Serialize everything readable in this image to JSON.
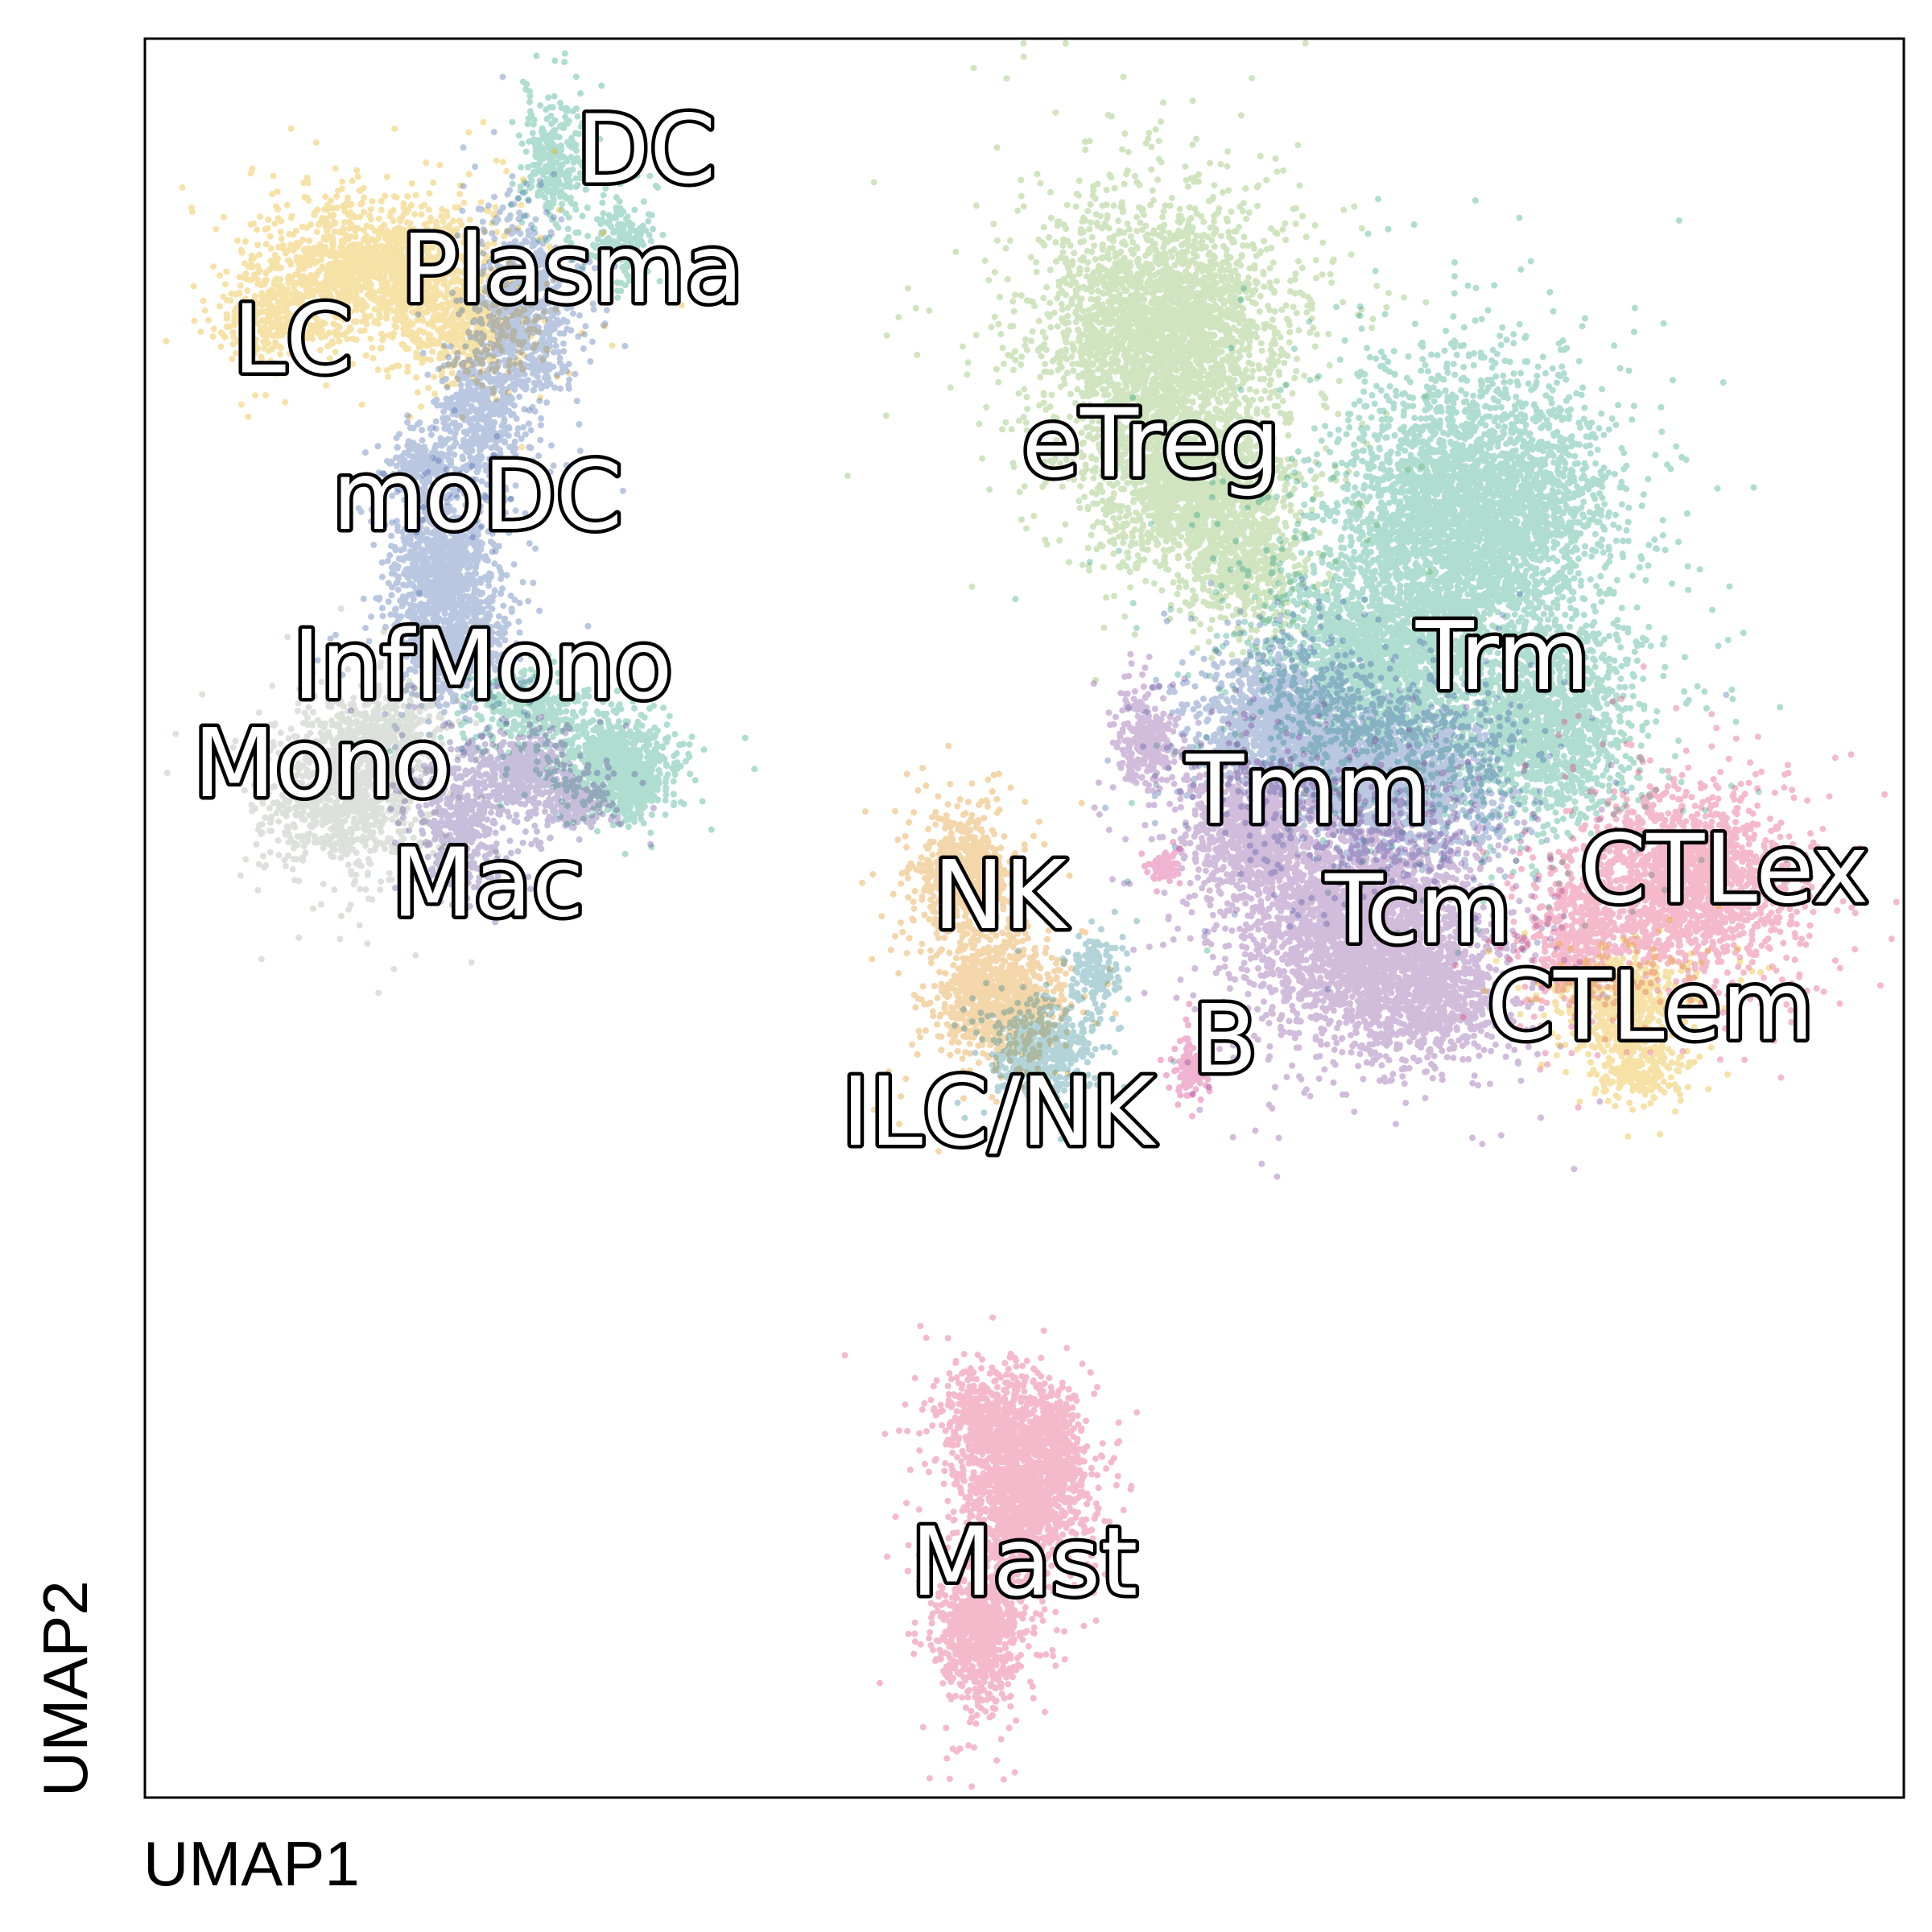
{
  "chart_data": {
    "type": "scatter",
    "title": "",
    "xlabel": "UMAP1",
    "ylabel": "UMAP2",
    "xlim": [
      0,
      100
    ],
    "ylim": [
      0,
      100
    ],
    "grid": false,
    "legend": "none",
    "clusters": [
      {
        "name": "DC",
        "color": "#1b9e77",
        "label_at": [
          28.5,
          93.3
        ],
        "blobs": [
          [
            23.3,
            92.7,
            1.5,
            3.0,
            300
          ],
          [
            27.1,
            88.4,
            1.6,
            2.0,
            200
          ]
        ]
      },
      {
        "name": "Plasma",
        "color": "#e6ab02",
        "label_at": [
          24.3,
          86.5
        ],
        "blobs": [
          [
            13.5,
            87.0,
            6.0,
            3.5,
            1400
          ],
          [
            7.5,
            84.3,
            2.5,
            2.0,
            300
          ],
          [
            18.5,
            83.5,
            3.0,
            2.5,
            400
          ]
        ]
      },
      {
        "name": "LC",
        "color": "#3a5fa8",
        "label_at": [
          8.4,
          82.5
        ],
        "blobs": [
          [
            21.5,
            84.5,
            2.8,
            5.0,
            800
          ],
          [
            19.0,
            78.0,
            2.2,
            4.0,
            500
          ],
          [
            15.5,
            75.5,
            1.5,
            2.0,
            200
          ]
        ]
      },
      {
        "name": "moDC",
        "color": "#3a5fa8",
        "label_at": [
          18.9,
          73.6
        ],
        "blobs": [
          [
            17.0,
            70.0,
            2.5,
            3.5,
            800
          ],
          [
            17.5,
            65.5,
            3.0,
            3.0,
            600
          ]
        ]
      },
      {
        "name": "InfMono",
        "color": "#1b9e77",
        "label_at": [
          19.2,
          64.0
        ],
        "blobs": [
          [
            26.5,
            59.0,
            3.0,
            2.2,
            600
          ],
          [
            22.0,
            62.0,
            3.0,
            2.0,
            300
          ],
          [
            27.5,
            57.5,
            1.5,
            1.5,
            300
          ]
        ]
      },
      {
        "name": "Mono",
        "color": "#9fa89a",
        "label_at": [
          10.1,
          58.4
        ],
        "blobs": [
          [
            11.5,
            57.0,
            4.0,
            4.0,
            1000
          ],
          [
            13.5,
            60.5,
            3.0,
            2.5,
            400
          ]
        ]
      },
      {
        "name": "Mac",
        "color": "#5b4596",
        "label_at": [
          19.5,
          51.6
        ],
        "blobs": [
          [
            18.0,
            55.5,
            2.5,
            3.5,
            500
          ],
          [
            21.5,
            58.5,
            2.5,
            2.0,
            400
          ],
          [
            24.5,
            56.5,
            2.0,
            1.5,
            200
          ]
        ]
      },
      {
        "name": "eTreg",
        "color": "#79b34a",
        "label_at": [
          57.2,
          76.6
        ],
        "blobs": [
          [
            58.0,
            83.0,
            6.0,
            6.5,
            3000
          ],
          [
            59.5,
            74.5,
            4.5,
            4.0,
            1400
          ],
          [
            62.5,
            70.0,
            3.0,
            3.0,
            500
          ]
        ]
      },
      {
        "name": "Trm",
        "color": "#1b9e77",
        "label_at": [
          77.2,
          64.5
        ],
        "blobs": [
          [
            75.5,
            73.0,
            6.5,
            7.0,
            3500
          ],
          [
            70.0,
            64.5,
            5.5,
            5.5,
            2000
          ],
          [
            79.5,
            61.0,
            4.5,
            5.0,
            1500
          ]
        ]
      },
      {
        "name": "Tmm",
        "color": "#3a5fa8",
        "label_at": [
          66.1,
          56.9
        ],
        "blobs": [
          [
            64.5,
            61.0,
            4.0,
            3.5,
            1200
          ],
          [
            71.0,
            58.0,
            5.5,
            4.5,
            1800
          ]
        ]
      },
      {
        "name": "Tcm",
        "color": "#7c3f97",
        "label_at": [
          72.4,
          50.1
        ],
        "blobs": [
          [
            69.5,
            49.5,
            6.0,
            5.5,
            2800
          ],
          [
            63.0,
            55.0,
            3.5,
            3.5,
            900
          ],
          [
            57.0,
            60.0,
            1.5,
            2.5,
            300
          ],
          [
            73.0,
            45.0,
            4.0,
            3.0,
            600
          ]
        ]
      },
      {
        "name": "CTLex",
        "color": "#e03a6c",
        "label_at": [
          89.8,
          52.4
        ],
        "blobs": [
          [
            88.0,
            52.0,
            5.0,
            4.5,
            1800
          ],
          [
            81.5,
            49.0,
            2.5,
            4.0,
            500
          ]
        ]
      },
      {
        "name": "CTLem",
        "color": "#e6ab02",
        "label_at": [
          85.6,
          44.6
        ],
        "blobs": [
          [
            84.0,
            45.5,
            3.5,
            2.5,
            500
          ],
          [
            85.0,
            41.5,
            2.0,
            1.8,
            250
          ]
        ]
      },
      {
        "name": "NK",
        "color": "#e08a0e",
        "label_at": [
          48.6,
          50.9
        ],
        "blobs": [
          [
            46.5,
            52.5,
            2.5,
            3.0,
            700
          ],
          [
            48.5,
            45.5,
            3.0,
            3.0,
            900
          ]
        ]
      },
      {
        "name": "ILC/NK",
        "color": "#21838e",
        "label_at": [
          48.5,
          38.6
        ],
        "blobs": [
          [
            51.0,
            42.5,
            2.5,
            2.5,
            500
          ],
          [
            54.0,
            47.0,
            1.2,
            2.0,
            150
          ]
        ]
      },
      {
        "name": "B",
        "color": "#d4267c",
        "label_at": [
          61.4,
          42.7
        ],
        "blobs": [
          [
            59.5,
            41.5,
            0.8,
            1.5,
            120
          ],
          [
            58.0,
            53.0,
            0.8,
            1.0,
            60
          ]
        ]
      },
      {
        "name": "Mast",
        "color": "#e03a6c",
        "label_at": [
          50.0,
          13.0
        ],
        "blobs": [
          [
            48.0,
            21.5,
            2.5,
            2.5,
            600
          ],
          [
            50.0,
            17.0,
            3.0,
            3.5,
            1200
          ],
          [
            47.5,
            9.5,
            2.3,
            3.5,
            900
          ],
          [
            51.5,
            20.5,
            1.5,
            2.5,
            300
          ]
        ]
      }
    ]
  }
}
